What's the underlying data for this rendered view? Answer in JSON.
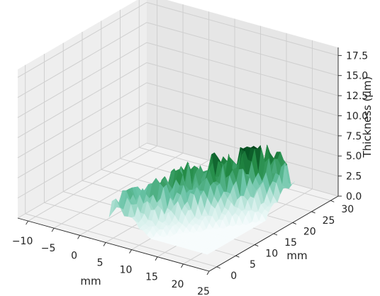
{
  "chart_data": {
    "type": "surface-3d",
    "title": "",
    "xlabel": "mm",
    "ylabel": "mm",
    "zlabel": "Thickness (µm)",
    "x_ticks": [
      "−10",
      "−5",
      "0",
      "5",
      "10",
      "15",
      "20",
      "25"
    ],
    "y_ticks": [
      "0",
      "5",
      "10",
      "15",
      "20",
      "25",
      "30"
    ],
    "z_ticks": [
      "0.0",
      "2.5",
      "5.0",
      "7.5",
      "10.0",
      "12.5",
      "15.0",
      "17.5"
    ],
    "xlim": [
      -12,
      25
    ],
    "ylim": [
      -2,
      32
    ],
    "zlim": [
      0,
      18.5
    ],
    "grid": true,
    "colormap": "BuGn",
    "surface": {
      "x_range": [
        2,
        21
      ],
      "y_range": [
        3,
        26
      ],
      "z_max": 7.3,
      "ridge_from": [
        4,
        5
      ],
      "ridge_to": [
        18,
        24
      ]
    }
  },
  "colors": {
    "pane_left": "#eeeeee",
    "pane_right": "#e6e6e6",
    "pane_floor": "#f2f2f2",
    "grid": "#cfcfcf",
    "axis": "#222222"
  }
}
